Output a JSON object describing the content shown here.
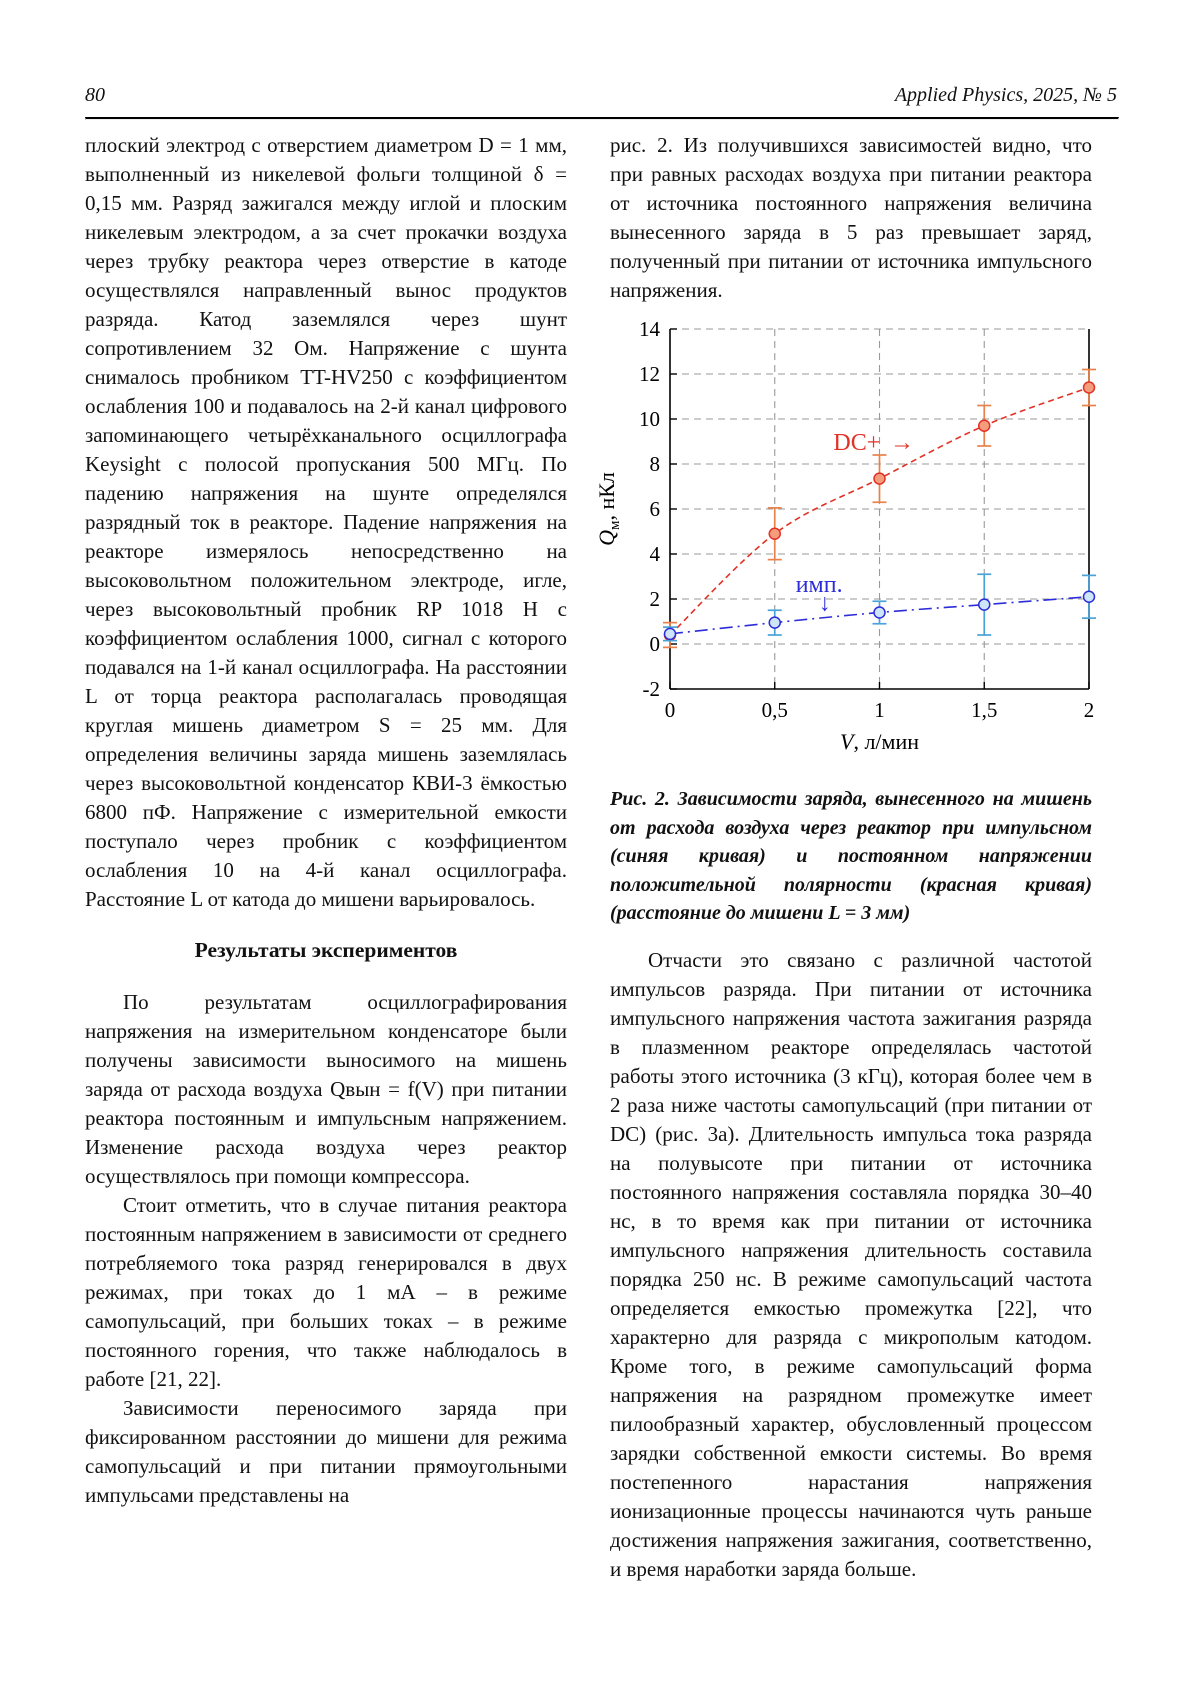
{
  "header": {
    "page_number": "80",
    "journal_title": "Applied Physics, 2025, № 5"
  },
  "left_column": {
    "paragraph_1": "плоский электрод с отверстием диаметром D = 1 мм, выполненный из никелевой фольги толщиной δ = 0,15 мм. Разряд зажигался между иглой и плоским никелевым электродом, а за счет прокачки воздуха через трубку реактора через отверстие в катоде осуществлялся направленный вынос продуктов разряда. Катод заземлялся через шунт сопротивлением 32 Ом. Напряжение с шунта снималось пробником TT-HV250 с коэффициентом ослабления 100 и подавалось на 2-й канал цифрового запоминающего четырёхканального осциллографа Keysight с полосой пропускания 500 МГц. По падению напряжения на шунте определялся разрядный ток в реакторе. Падение напряжения на реакторе измерялось непосредственно на высоковольтном положительном электроде, игле, через высоковольтный пробник RP 1018 H с коэффициентом ослабления 1000, сигнал с которого подавался на 1-й канал осциллографа. На расстоянии L от торца реактора располагалась проводящая круглая мишень диаметром S = 25 мм. Для определения величины заряда мишень заземлялась через высоковольтной конденсатор КВИ-3 ёмкостью 6800 пФ. Напряжение с измерительной емкости поступало через пробник с коэффициентом ослабления 10 на 4-й канал осциллографа. Расстояние L от катода до мишени варьировалось.",
    "section_heading": "Результаты экспериментов",
    "paragraph_2": "По результатам осциллографирования напряжения на измерительном конденсаторе были получены зависимости выносимого на мишень заряда от расхода воздуха Qвын = f(V) при питании реактора постоянным и импульсным напряжением. Изменение расхода воздуха через реактор осуществлялось при помощи компрессора.",
    "paragraph_3": "Стоит отметить, что в случае питания реактора постоянным напряжением в зависимости от среднего потребляемого тока разряд генерировался в двух режимах, при токах до 1 мА – в режиме самопульсаций, при больших токах – в режиме постоянного горения, что также наблюдалось в работе [21, 22].",
    "paragraph_4": "Зависимости переносимого заряда при фиксированном расстоянии до мишени для режима самопульсаций и при питании прямоугольными импульсами представлены на"
  },
  "right_column": {
    "paragraph_1": "рис. 2. Из получившихся зависимостей видно, что при равных расходах воздуха при питании реактора от источника постоянного напряжения величина вынесенного заряда в 5 раз превышает заряд, полученный при питании от источника импульсного напряжения.",
    "figure_caption": "Рис. 2. Зависимости заряда, вынесенного на мишень от расхода воздуха через реактор при импульсном (синяя кривая) и постоянном напряжении положительной полярности (красная кривая) (расстояние до мишени L = 3 мм)",
    "paragraph_2": "Отчасти это связано с различной частотой импульсов разряда. При питании от источника импульсного напряжения частота зажигания разряда в плазменном реакторе определялась частотой работы этого источника (3 кГц), которая более чем в 2 раза ниже частоты самопульсаций (при питании от DC) (рис. 3а). Длительность импульса тока разряда на полувысоте при питании от источника постоянного напряжения составляла порядка 30–40 нс, в то время как при питании от источника импульсного напряжения длительность составила порядка 250 нс. В режиме самопульсаций частота определяется емкостью промежутка [22], что характерно для разряда с микрополым катодом. Кроме того, в режиме самопульсаций форма напряжения на разрядном промежутке имеет пилообразный характер, обусловленный процессом зарядки собственной емкости системы. Во время постепенного нарастания напряжения ионизационные процессы начинаются чуть раньше достижения напряжения зажигания, соответственно, и время наработки заряда больше."
  },
  "chart_data": {
    "type": "scatter",
    "title": "",
    "xlabel_var": "V",
    "xlabel_rest": ", л/мин",
    "ylabel_var": "Q",
    "ylabel_sub": "м",
    "ylabel_rest": ", нКл",
    "xlim": [
      0,
      2
    ],
    "ylim": [
      -2,
      14
    ],
    "xticks": [
      0,
      0.5,
      1,
      1.5,
      2
    ],
    "xtick_labels": [
      "0",
      "0,5",
      "1",
      "1,5",
      "2"
    ],
    "yticks": [
      -2,
      0,
      2,
      4,
      6,
      8,
      10,
      12,
      14
    ],
    "grid": true,
    "legend_position": "none",
    "series": [
      {
        "name": "DC+",
        "x": [
          0,
          0.5,
          1,
          1.5,
          2
        ],
        "y": [
          0.4,
          4.9,
          7.35,
          9.7,
          11.4
        ],
        "yerr": [
          0.55,
          1.15,
          1.05,
          0.9,
          0.8
        ],
        "color": "#e23125",
        "marker_fill": "#f49d7d",
        "err_color": "#e8824a",
        "dash": "6 4"
      },
      {
        "name": "имп.",
        "x": [
          0,
          0.5,
          1,
          1.5,
          2
        ],
        "y": [
          0.45,
          0.95,
          1.4,
          1.75,
          2.1
        ],
        "yerr": [
          0.3,
          0.55,
          0.5,
          1.35,
          0.95
        ],
        "color": "#2c2cd8",
        "marker_fill": "#cde5f6",
        "err_color": "#4aa3d8",
        "dash": "13 5 2 5"
      }
    ],
    "annotations": [
      {
        "text": "DC+",
        "x": 0.78,
        "y": 8.62,
        "color": "#e23125",
        "arrow": "→",
        "arrow_x": 1.05,
        "arrow_y": 8.62
      },
      {
        "text": "имп.",
        "x": 0.6,
        "y": 2.32,
        "color": "#2c2cd8",
        "arrow": "↓",
        "arrow_x": 0.71,
        "arrow_y": 1.5
      }
    ]
  }
}
